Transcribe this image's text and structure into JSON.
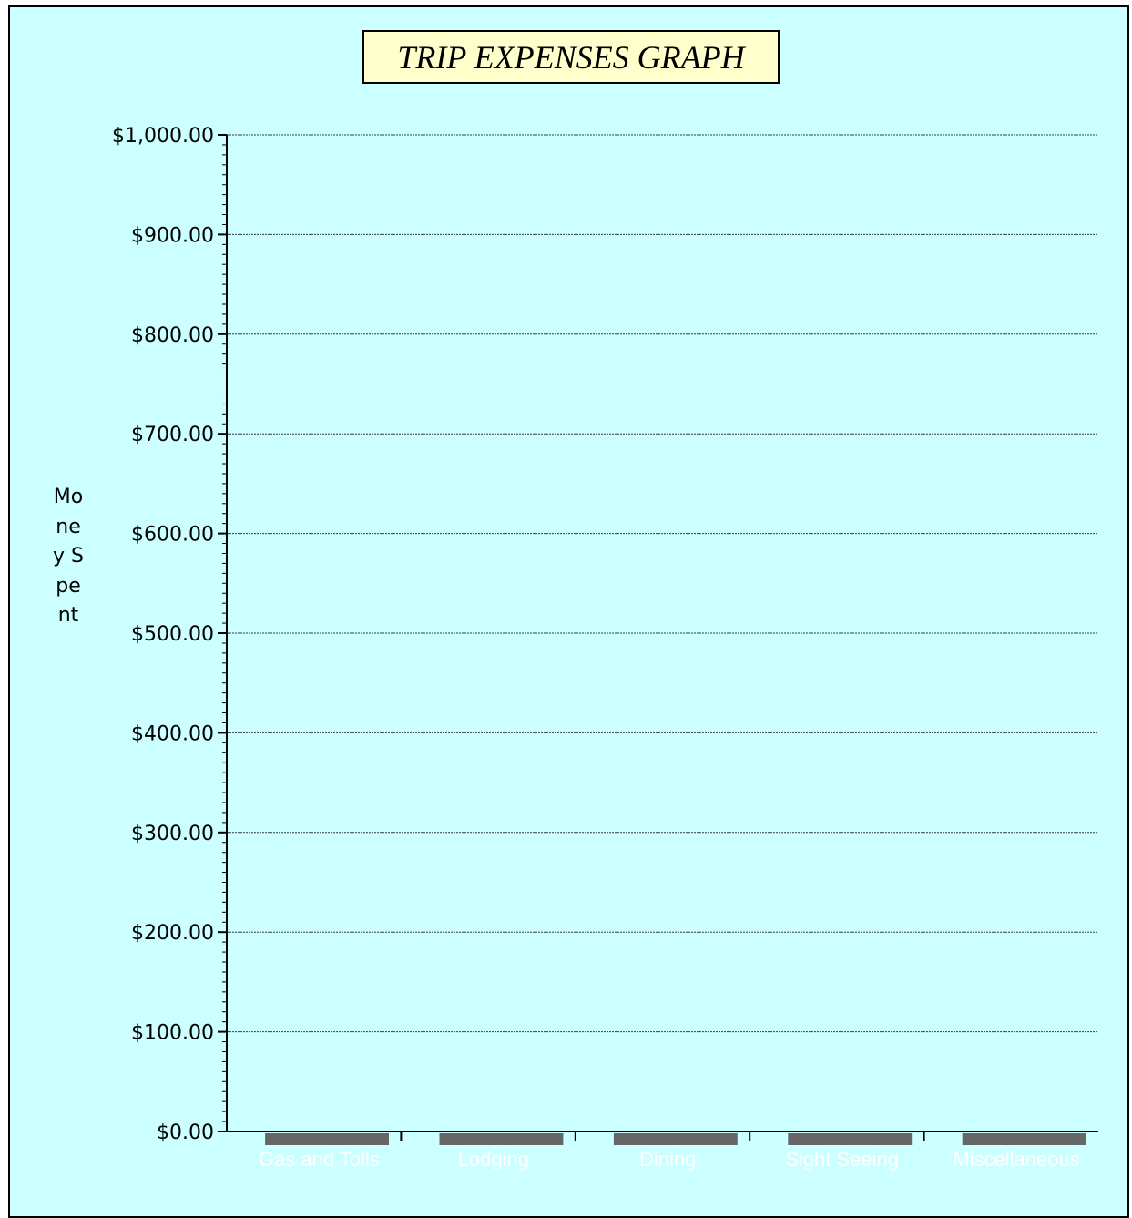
{
  "chart_data": {
    "type": "bar",
    "title": "TRIP EXPENSES GRAPH",
    "xlabel": "",
    "ylabel": "Money Spent",
    "categories": [
      "Gas and Tolls",
      "Lodging",
      "Dining",
      "Sight Seeing",
      "Miscellaneous"
    ],
    "values": [
      0,
      0,
      0,
      0,
      0
    ],
    "ylim": [
      0,
      1000
    ],
    "yticks": [
      0,
      100,
      200,
      300,
      400,
      500,
      600,
      700,
      800,
      900,
      1000
    ],
    "ytick_labels": [
      "$0.00",
      "$100.00",
      "$200.00",
      "$300.00",
      "$400.00",
      "$500.00",
      "$600.00",
      "$700.00",
      "$800.00",
      "$900.00",
      "$1,000.00"
    ],
    "grid": true,
    "colors": {
      "background": "#ccffff",
      "title_box": "#ffffcc",
      "bar": "#666666",
      "category_label": "#ffffff",
      "axis": "#000000"
    }
  }
}
